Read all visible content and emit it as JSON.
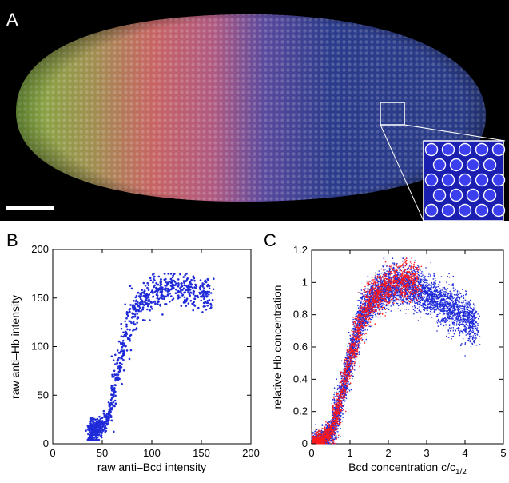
{
  "panels": {
    "a": {
      "label": "A"
    },
    "b": {
      "label": "B"
    },
    "c": {
      "label": "C"
    }
  },
  "colors": {
    "blue_points": "#1f2bd8",
    "red_points": "#ff1a1a",
    "embryo_green": "#78b43c",
    "embryo_red": "#c85a64",
    "embryo_blue": "#2c3c8c",
    "background": "#000000"
  },
  "chart_data": [
    {
      "panel": "B",
      "type": "scatter",
      "title": "",
      "xlabel": "raw anti–Bcd intensity",
      "ylabel": "raw anti–Hb intensity",
      "xlim": [
        0,
        200
      ],
      "ylim": [
        0,
        200
      ],
      "xticks": [
        0,
        50,
        100,
        150,
        200
      ],
      "yticks": [
        0,
        50,
        100,
        150,
        200
      ],
      "xtick_labels": [
        "0",
        "50",
        "100",
        "150",
        "200"
      ],
      "ytick_labels": [
        "0",
        "50",
        "100",
        "150",
        "200"
      ],
      "grid": false,
      "series": [
        {
          "color": "#1f2bd8",
          "trend": {
            "x": [
              38,
              45,
              52,
              58,
              62,
              66,
              70,
              75,
              80,
              85,
              90,
              95,
              100,
              110,
              120,
              130,
              140,
              150,
              160
            ],
            "y": [
              12,
              15,
              20,
              35,
              55,
              80,
              100,
              118,
              130,
              140,
              146,
              150,
              155,
              158,
              160,
              160,
              158,
              156,
              155
            ]
          },
          "x_range": [
            38,
            160
          ],
          "y_range": [
            5,
            175
          ],
          "n_points": 900
        }
      ]
    },
    {
      "panel": "C",
      "type": "scatter",
      "title": "",
      "xlabel": "Bcd concentration c/c",
      "xlabel_sub": "1/2",
      "ylabel": "relative Hb concentration",
      "xlim": [
        0,
        5
      ],
      "ylim": [
        0,
        1.2
      ],
      "xticks": [
        0,
        1,
        2,
        3,
        4,
        5
      ],
      "yticks": [
        0,
        0.2,
        0.4,
        0.6,
        0.8,
        1,
        1.2
      ],
      "xtick_labels": [
        "0",
        "1",
        "2",
        "3",
        "4",
        "5"
      ],
      "ytick_labels": [
        "0",
        "0.2",
        "0.4",
        "0.6",
        "0.8",
        "1",
        "1.2"
      ],
      "grid": false,
      "series": [
        {
          "color": "#1f2bd8",
          "trend": {
            "x": [
              0.1,
              0.3,
              0.5,
              0.7,
              0.9,
              1.1,
              1.3,
              1.5,
              1.8,
              2.1,
              2.5,
              3.0,
              3.5,
              4.0,
              4.3
            ],
            "y": [
              0.0,
              0.02,
              0.08,
              0.22,
              0.42,
              0.62,
              0.78,
              0.88,
              0.95,
              0.98,
              0.98,
              0.93,
              0.85,
              0.78,
              0.72
            ]
          },
          "x_range": [
            0.0,
            4.3
          ],
          "y_range": [
            0,
            1.15
          ],
          "n_points": 6000
        },
        {
          "color": "#ff1a1a",
          "trend": {
            "x": [
              0.1,
              0.3,
              0.5,
              0.7,
              0.9,
              1.1,
              1.3,
              1.5,
              1.8,
              2.1,
              2.5,
              2.8
            ],
            "y": [
              0.0,
              0.02,
              0.08,
              0.22,
              0.42,
              0.62,
              0.78,
              0.88,
              0.95,
              0.99,
              1.02,
              1.0
            ]
          },
          "x_range": [
            0.0,
            2.8
          ],
          "y_range": [
            0,
            1.15
          ],
          "n_points": 2200
        }
      ]
    }
  ]
}
